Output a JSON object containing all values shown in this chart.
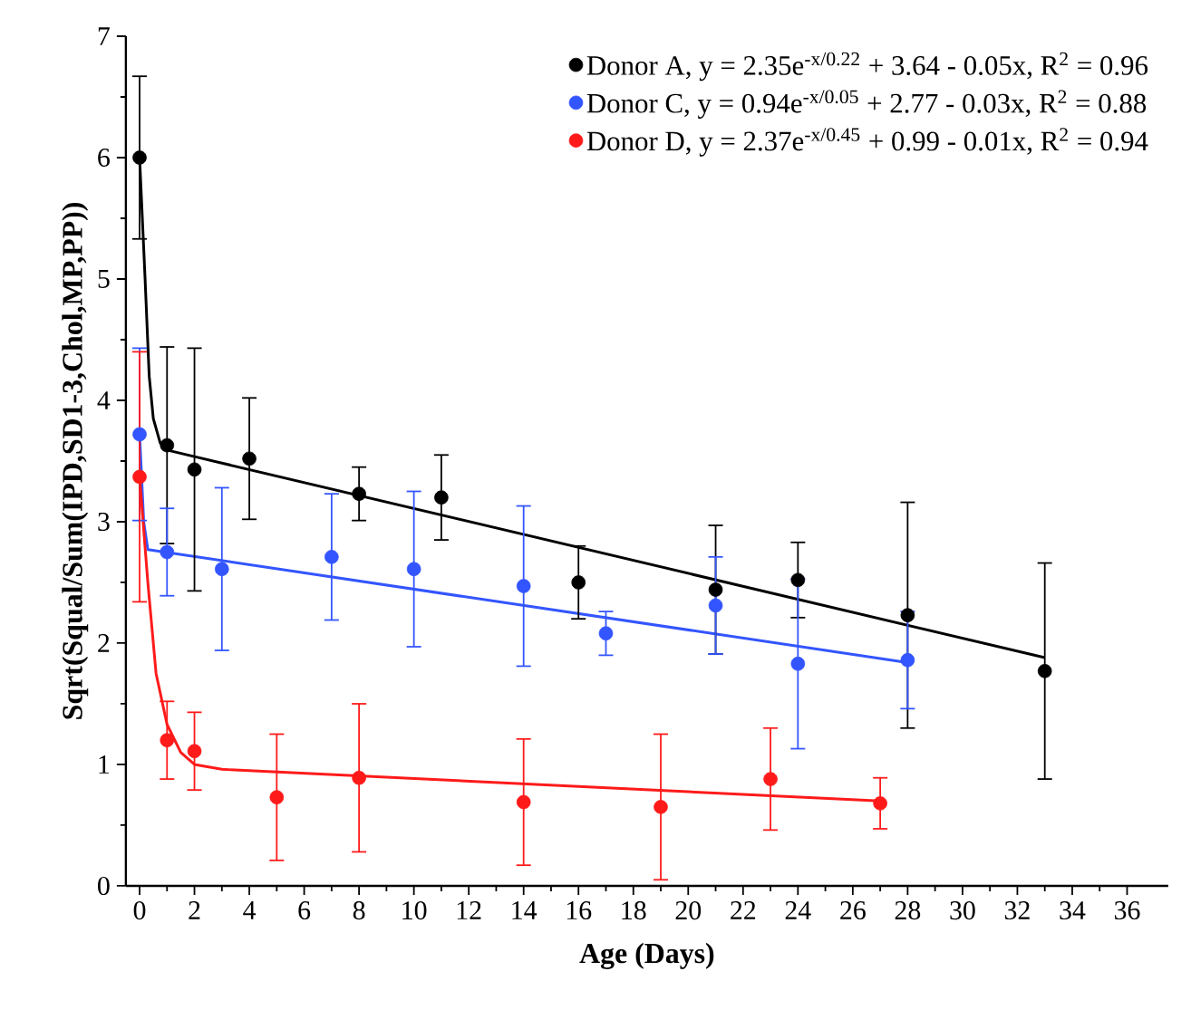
{
  "chart_data": {
    "type": "scatter",
    "xlabel": "Age (Days)",
    "ylabel": "Sqrt(Squal/Sum(IPD,SD1-3,Chol,MP,PP))",
    "xlim": [
      -0.5,
      37.5
    ],
    "ylim": [
      0,
      7
    ],
    "xticks": [
      0,
      2,
      4,
      6,
      8,
      10,
      12,
      14,
      16,
      18,
      20,
      22,
      24,
      26,
      28,
      30,
      32,
      34,
      36
    ],
    "yticks": [
      0,
      1,
      2,
      3,
      4,
      5,
      6,
      7
    ],
    "legend": "top right",
    "series": [
      {
        "name": "Donor A, y = 2.35e$^{-x/0.22}$ + 3.64 - 0.05x, R$^{2}$ = 0.96",
        "marker": "circle",
        "color": "#000000",
        "x": [
          0,
          1,
          2,
          4,
          8,
          11,
          16,
          21,
          24,
          28,
          33
        ],
        "values": [
          6.0,
          3.63,
          3.43,
          3.52,
          3.23,
          3.2,
          2.5,
          2.44,
          2.52,
          2.23,
          1.77
        ],
        "errors": [
          0.67,
          0.81,
          1.0,
          0.5,
          0.22,
          0.35,
          0.3,
          0.53,
          0.31,
          0.93,
          0.89
        ]
      },
      {
        "name": "Donor C, y = 0.94e$^{-x/0.05}$ + 2.77 - 0.03x, R$^{2}$ = 0.88",
        "marker": "circle",
        "color": "#3355ff",
        "x": [
          0,
          1,
          3,
          7,
          10,
          14,
          17,
          21,
          24,
          28
        ],
        "values": [
          3.72,
          2.75,
          2.61,
          2.71,
          2.61,
          2.47,
          2.08,
          2.31,
          1.83,
          1.86
        ],
        "errors": [
          0.71,
          0.36,
          0.67,
          0.52,
          0.64,
          0.66,
          0.18,
          0.4,
          0.7,
          0.4
        ]
      },
      {
        "name": "Donor D, y = 2.37e$^{-x/0.45}$ + 0.99 - 0.01x, R$^{2}$ = 0.94",
        "marker": "circle",
        "color": "#ff1a1a",
        "x": [
          0,
          1,
          2,
          5,
          8,
          14,
          19,
          23,
          27
        ],
        "values": [
          3.37,
          1.2,
          1.11,
          0.73,
          0.89,
          0.69,
          0.65,
          0.88,
          0.68
        ],
        "errors": [
          1.03,
          0.32,
          0.32,
          0.52,
          0.61,
          0.52,
          0.6,
          0.42,
          0.21
        ]
      },
      {
        "type": "line",
        "marker": "none",
        "color": "#000000",
        "x": [
          0,
          0.2,
          0.35,
          0.5,
          0.75,
          1,
          33
        ],
        "values": [
          6.0,
          5.0,
          4.2,
          3.85,
          3.65,
          3.59,
          1.88
        ]
      },
      {
        "type": "line",
        "marker": "none",
        "color": "#3355ff",
        "x": [
          0,
          0.15,
          0.3,
          28
        ],
        "values": [
          3.72,
          3.0,
          2.77,
          1.84
        ]
      },
      {
        "type": "line",
        "marker": "none",
        "color": "#ff1a1a",
        "x": [
          0,
          0.3,
          0.6,
          1,
          1.5,
          2,
          3,
          27
        ],
        "values": [
          3.37,
          2.5,
          1.75,
          1.33,
          1.1,
          1.0,
          0.96,
          0.7
        ]
      }
    ]
  }
}
